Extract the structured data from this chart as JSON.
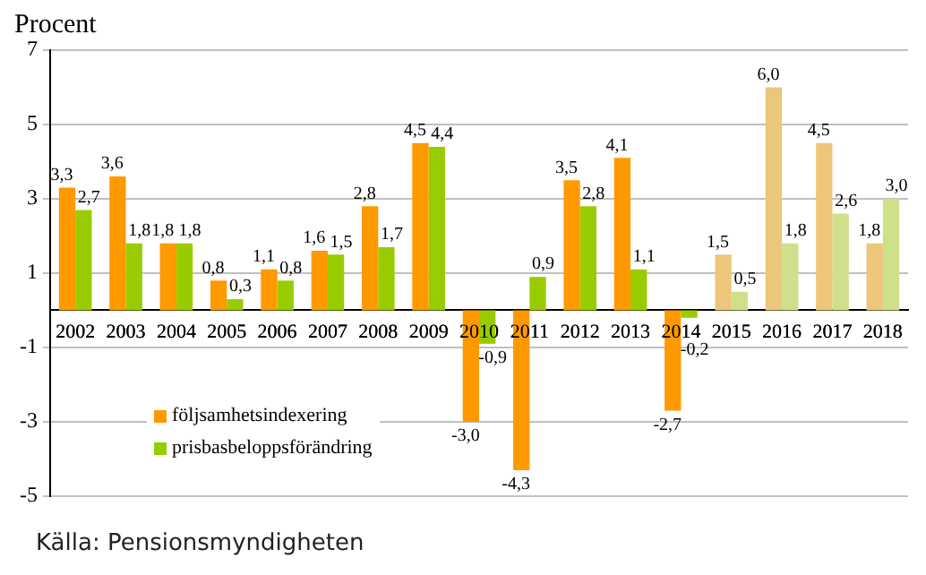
{
  "chart_data": {
    "type": "bar",
    "ylabel": "Procent",
    "categories": [
      "2002",
      "2003",
      "2004",
      "2005",
      "2006",
      "2007",
      "2008",
      "2009",
      "2010",
      "2011",
      "2012",
      "2013",
      "2014",
      "2015",
      "2016",
      "2017",
      "2018"
    ],
    "series": [
      {
        "name": "följsamhetsindexering",
        "color": "#ff9900",
        "colors": [
          "#ff9900",
          "#ff9900",
          "#ff9900",
          "#ff9900",
          "#ff9900",
          "#ff9900",
          "#ff9900",
          "#ff9900",
          "#ff9900",
          "#ff9900",
          "#ff9900",
          "#ff9900",
          "#ff9900",
          "#ecc77a",
          "#ecc77a",
          "#ecc77a",
          "#ecc77a"
        ],
        "values": [
          3.3,
          3.6,
          1.8,
          0.8,
          1.1,
          1.6,
          2.8,
          4.5,
          -3.0,
          -4.3,
          3.5,
          4.1,
          -2.7,
          1.5,
          6.0,
          4.5,
          1.8
        ],
        "value_labels": [
          "3,3",
          "3,6",
          "1,8",
          "0,8",
          "1,1",
          "1,6",
          "2,8",
          "4,5",
          "-3,0",
          "-4,3",
          "3,5",
          "4,1",
          "-2,7",
          "1,5",
          "6,0",
          "4,5",
          "1,8"
        ]
      },
      {
        "name": "prisbasbeloppsförändring",
        "color": "#99cc00",
        "colors": [
          "#99cc00",
          "#99cc00",
          "#99cc00",
          "#99cc00",
          "#99cc00",
          "#99cc00",
          "#99cc00",
          "#99cc00",
          "#99cc00",
          "#99cc00",
          "#99cc00",
          "#99cc00",
          "#99cc00",
          "#cfe08a",
          "#cfe08a",
          "#cfe08a",
          "#cfe08a"
        ],
        "values": [
          2.7,
          1.8,
          1.8,
          0.3,
          0.8,
          1.5,
          1.7,
          4.4,
          -0.9,
          0.9,
          2.8,
          1.1,
          -0.2,
          0.5,
          1.8,
          2.6,
          3.0
        ],
        "value_labels": [
          "2,7",
          "1,8",
          "1,8",
          "0,3",
          "0,8",
          "1,5",
          "1,7",
          "4,4",
          "-0,9",
          "0,9",
          "2,8",
          "1,1",
          "-0,2",
          "0,5",
          "1,8",
          "2,6",
          "3,0"
        ]
      }
    ],
    "ylim": [
      -5,
      7
    ],
    "yticks": [
      -5,
      -3,
      -1,
      1,
      3,
      5,
      7
    ],
    "grid": "y",
    "legend": "bottom left",
    "annotations": [
      "Källa: Pensionsmyndigheten"
    ]
  }
}
